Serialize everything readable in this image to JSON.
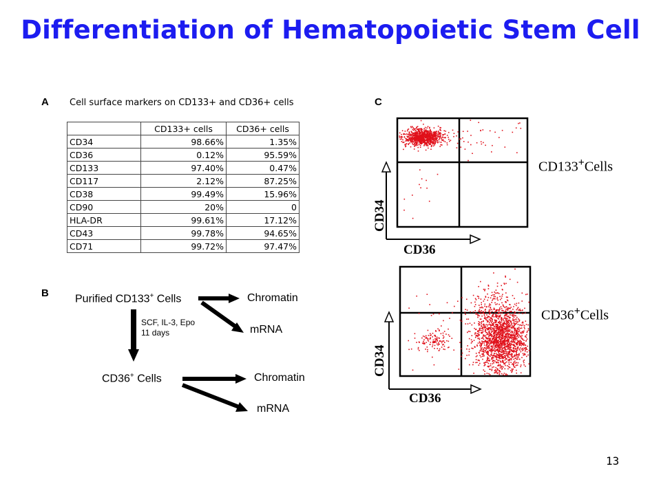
{
  "slide": {
    "title": "Differentiation of Hematopoietic Stem Cell",
    "page_number": "13"
  },
  "panel_a": {
    "letter": "A",
    "caption": "Cell surface markers on CD133+ and CD36+ cells",
    "headers": [
      "",
      "CD133+ cells",
      "CD36+ cells"
    ],
    "rows": [
      [
        "CD34",
        "98.66%",
        "1.35%"
      ],
      [
        "CD36",
        "0.12%",
        "95.59%"
      ],
      [
        "CD133",
        "97.40%",
        "0.47%"
      ],
      [
        "CD117",
        "2.12%",
        "87.25%"
      ],
      [
        "CD38",
        "99.49%",
        "15.96%"
      ],
      [
        "CD90",
        "20%",
        "0"
      ],
      [
        "HLA-DR",
        "99.61%",
        "17.12%"
      ],
      [
        "CD43",
        "99.78%",
        "94.65%"
      ],
      [
        "CD71",
        "99.72%",
        "97.47%"
      ]
    ]
  },
  "panel_b": {
    "letter": "B",
    "start": "Purified CD133",
    "start_sup": "+",
    "start_suffix": " Cells",
    "treatment_line1": "SCF, IL-3, Epo",
    "treatment_line2": "11 days",
    "end": "CD36",
    "end_sup": "+",
    "end_suffix": " Cells",
    "output_1": "Chromatin",
    "output_2": "mRNA"
  },
  "panel_c": {
    "letter": "C",
    "plots": [
      {
        "y_axis": "CD34",
        "x_axis": "CD36",
        "population": "CD133",
        "sup": "+",
        "suffix": "Cells"
      },
      {
        "y_axis": "CD34",
        "x_axis": "CD36",
        "population": "CD36",
        "sup": "+",
        "suffix": "Cells"
      }
    ],
    "dot_color": "#e0101a"
  }
}
